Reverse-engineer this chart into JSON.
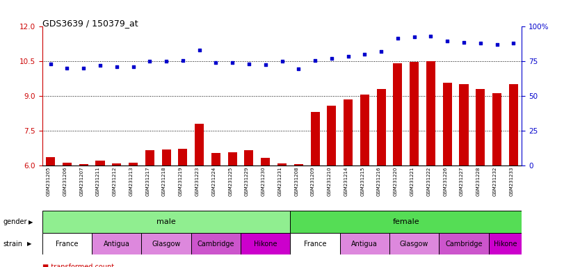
{
  "title": "GDS3639 / 150379_at",
  "samples": [
    "GSM231205",
    "GSM231206",
    "GSM231207",
    "GSM231211",
    "GSM231212",
    "GSM231213",
    "GSM231217",
    "GSM231218",
    "GSM231219",
    "GSM231223",
    "GSM231224",
    "GSM231225",
    "GSM231229",
    "GSM231230",
    "GSM231231",
    "GSM231208",
    "GSM231209",
    "GSM231210",
    "GSM231214",
    "GSM231215",
    "GSM231216",
    "GSM231220",
    "GSM231221",
    "GSM231222",
    "GSM231226",
    "GSM231227",
    "GSM231228",
    "GSM231232",
    "GSM231233"
  ],
  "bar_values": [
    6.35,
    6.12,
    6.05,
    6.22,
    6.08,
    6.12,
    6.65,
    6.68,
    6.72,
    7.82,
    6.55,
    6.58,
    6.65,
    6.32,
    6.08,
    6.05,
    8.32,
    8.58,
    8.85,
    9.08,
    9.32,
    10.42,
    10.48,
    10.52,
    9.58,
    9.52,
    9.32,
    9.12,
    9.52
  ],
  "percentile_left": [
    10.38,
    10.22,
    10.2,
    10.32,
    10.28,
    10.28,
    10.5,
    10.5,
    10.53,
    10.98,
    10.45,
    10.45,
    10.4,
    10.35,
    10.5,
    10.18,
    10.53,
    10.62,
    10.72,
    10.82,
    10.92,
    11.5,
    11.55,
    11.6,
    11.38,
    11.32,
    11.28,
    11.22,
    11.28
  ],
  "bar_color": "#cc0000",
  "dot_color": "#0000cc",
  "ylim_left": [
    6.0,
    12.0
  ],
  "ylim_right": [
    0,
    100
  ],
  "yticks_left": [
    6.0,
    7.5,
    9.0,
    10.5,
    12.0
  ],
  "yticks_right": [
    0,
    25,
    50,
    75,
    100
  ],
  "dotted_lines": [
    7.5,
    9.0,
    10.5
  ],
  "male_count": 15,
  "total_count": 29,
  "male_color": "#90ee90",
  "female_color": "#55dd55",
  "strain_groups": [
    [
      0,
      3,
      "France",
      "#ffffff"
    ],
    [
      3,
      3,
      "Antigua",
      "#dd88dd"
    ],
    [
      6,
      3,
      "Glasgow",
      "#dd88dd"
    ],
    [
      9,
      3,
      "Cambridge",
      "#cc55cc"
    ],
    [
      12,
      3,
      "Hikone",
      "#cc00cc"
    ],
    [
      15,
      3,
      "France",
      "#ffffff"
    ],
    [
      18,
      3,
      "Antigua",
      "#dd88dd"
    ],
    [
      21,
      3,
      "Glasgow",
      "#dd88dd"
    ],
    [
      24,
      3,
      "Cambridge",
      "#cc55cc"
    ],
    [
      27,
      2,
      "Hikone",
      "#cc00cc"
    ]
  ],
  "left_axis_color": "#cc0000",
  "right_axis_color": "#0000cc",
  "background_color": "#ffffff"
}
